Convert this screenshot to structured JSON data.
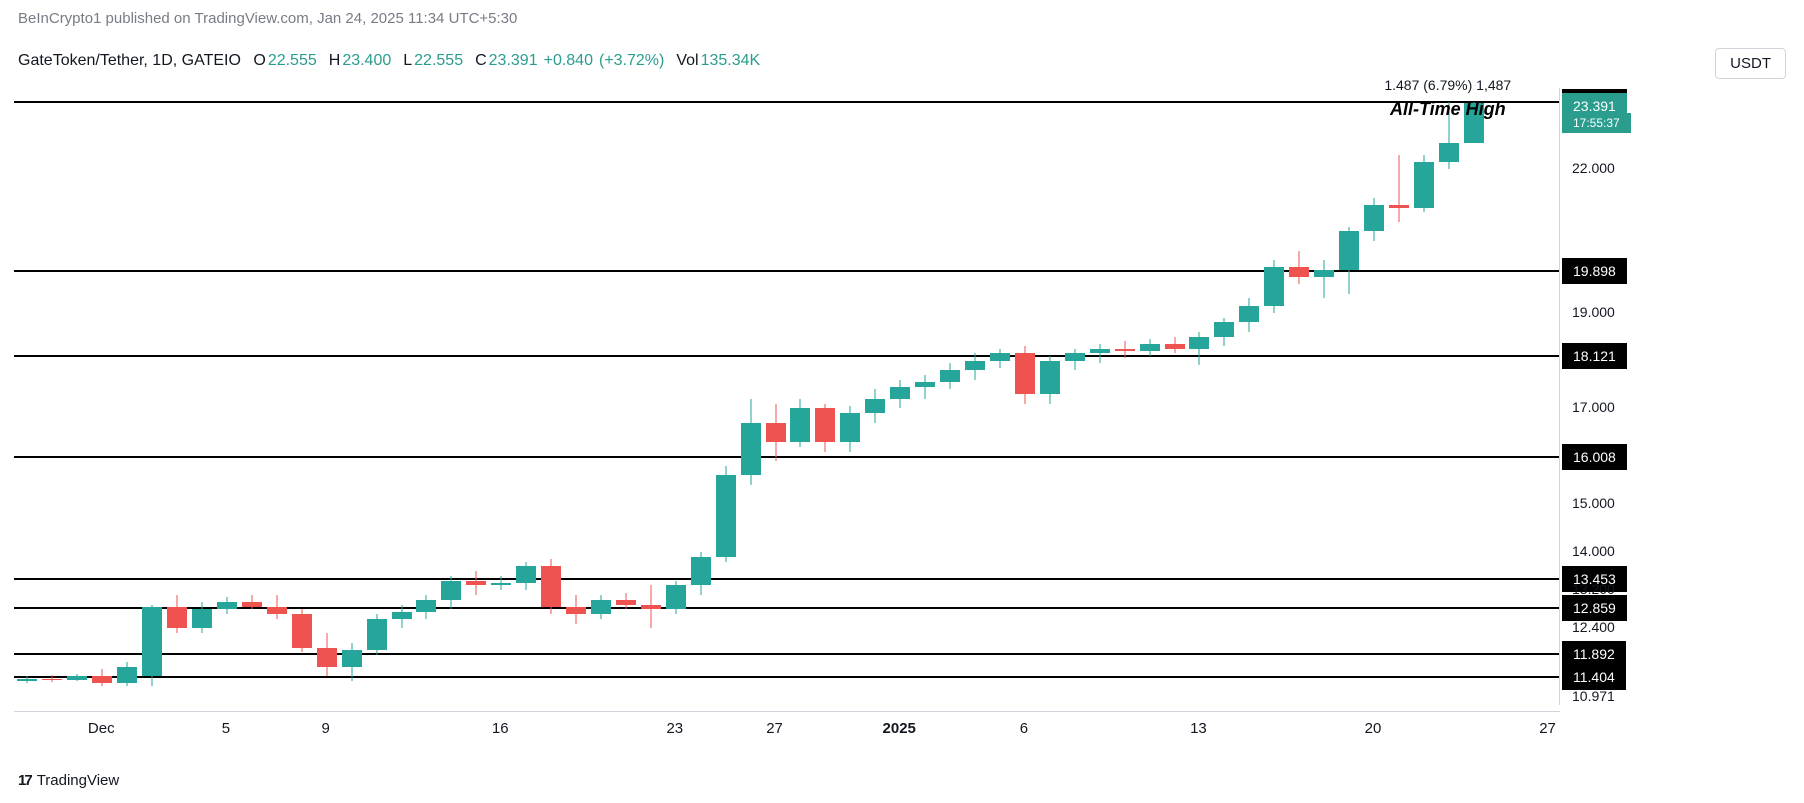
{
  "meta": {
    "publisher": "BeInCrypto1 published on TradingView.com, Jan 24, 2025 11:34 UTC+5:30",
    "footer_brand": "TradingView",
    "unit": "USDT"
  },
  "legend": {
    "pair": "GateToken/Tether, 1D, GATEIO",
    "O": "22.555",
    "H": "23.400",
    "L": "22.555",
    "C": "23.391",
    "change": "+0.840",
    "change_pct": "(+3.72%)",
    "vol_label": "Vol",
    "vol": "135.34K",
    "ohlc_color": "#2a9d8f"
  },
  "ath": {
    "label": "All-Time High",
    "range_text": "1.487 (6.79%) 1,487",
    "high_tag": "23.438",
    "close_tag": "23.391",
    "countdown": "17:55:37"
  },
  "chart": {
    "type": "candlestick",
    "background_color": "#ffffff",
    "up_color": "#26a69a",
    "down_color": "#ef5350",
    "wick_up_color": "#26a69a",
    "wick_down_color": "#ef5350",
    "candle_body_width": 20,
    "y_min": 10.8,
    "y_max": 23.7,
    "y_ticks": [
      {
        "v": 22.0,
        "label": "22.000"
      },
      {
        "v": 19.0,
        "label": "19.000"
      },
      {
        "v": 17.0,
        "label": "17.000"
      },
      {
        "v": 15.0,
        "label": "15.000"
      },
      {
        "v": 14.0,
        "label": "14.000"
      },
      {
        "v": 13.2,
        "label": "13.200"
      },
      {
        "v": 12.4,
        "label": "12.400"
      },
      {
        "v": 10.971,
        "label": "10.971"
      }
    ],
    "h_lines": [
      {
        "v": 23.438,
        "label": "23.438",
        "ath": true
      },
      {
        "v": 19.898,
        "label": "19.898"
      },
      {
        "v": 18.121,
        "label": "18.121"
      },
      {
        "v": 16.008,
        "label": "16.008"
      },
      {
        "v": 13.453,
        "label": "13.453"
      },
      {
        "v": 12.859,
        "label": "12.859"
      },
      {
        "v": 11.892,
        "label": "11.892"
      },
      {
        "v": 11.404,
        "label": "11.404"
      }
    ],
    "x_ticks": [
      {
        "i": 3,
        "label": "Dec"
      },
      {
        "i": 8,
        "label": "5"
      },
      {
        "i": 12,
        "label": "9"
      },
      {
        "i": 19,
        "label": "16"
      },
      {
        "i": 26,
        "label": "23"
      },
      {
        "i": 30,
        "label": "27"
      },
      {
        "i": 35,
        "label": "2025",
        "bold": true
      },
      {
        "i": 40,
        "label": "6"
      },
      {
        "i": 47,
        "label": "13"
      },
      {
        "i": 54,
        "label": "20"
      },
      {
        "i": 61,
        "label": "27"
      }
    ],
    "n_slots": 62,
    "candles": [
      {
        "i": 0,
        "o": 11.3,
        "h": 11.4,
        "l": 11.25,
        "c": 11.35,
        "up": true
      },
      {
        "i": 1,
        "o": 11.35,
        "h": 11.42,
        "l": 11.28,
        "c": 11.32,
        "up": false
      },
      {
        "i": 2,
        "o": 11.32,
        "h": 11.45,
        "l": 11.3,
        "c": 11.4,
        "up": true
      },
      {
        "i": 3,
        "o": 11.4,
        "h": 11.55,
        "l": 11.2,
        "c": 11.25,
        "up": false
      },
      {
        "i": 4,
        "o": 11.25,
        "h": 11.7,
        "l": 11.2,
        "c": 11.6,
        "up": true
      },
      {
        "i": 5,
        "o": 11.4,
        "h": 12.9,
        "l": 11.2,
        "c": 12.85,
        "up": true
      },
      {
        "i": 6,
        "o": 12.85,
        "h": 13.1,
        "l": 12.3,
        "c": 12.4,
        "up": false
      },
      {
        "i": 7,
        "o": 12.4,
        "h": 12.95,
        "l": 12.3,
        "c": 12.8,
        "up": true
      },
      {
        "i": 8,
        "o": 12.8,
        "h": 13.05,
        "l": 12.7,
        "c": 12.95,
        "up": true
      },
      {
        "i": 9,
        "o": 12.95,
        "h": 13.1,
        "l": 12.8,
        "c": 12.85,
        "up": false
      },
      {
        "i": 10,
        "o": 12.85,
        "h": 13.1,
        "l": 12.6,
        "c": 12.7,
        "up": false
      },
      {
        "i": 11,
        "o": 12.7,
        "h": 12.8,
        "l": 11.9,
        "c": 12.0,
        "up": false
      },
      {
        "i": 12,
        "o": 12.0,
        "h": 12.3,
        "l": 11.4,
        "c": 11.6,
        "up": false
      },
      {
        "i": 13,
        "o": 11.6,
        "h": 12.1,
        "l": 11.3,
        "c": 11.95,
        "up": true
      },
      {
        "i": 14,
        "o": 11.95,
        "h": 12.7,
        "l": 11.85,
        "c": 12.6,
        "up": true
      },
      {
        "i": 15,
        "o": 12.6,
        "h": 12.9,
        "l": 12.4,
        "c": 12.75,
        "up": true
      },
      {
        "i": 16,
        "o": 12.75,
        "h": 13.1,
        "l": 12.6,
        "c": 13.0,
        "up": true
      },
      {
        "i": 17,
        "o": 13.0,
        "h": 13.5,
        "l": 12.8,
        "c": 13.4,
        "up": true
      },
      {
        "i": 18,
        "o": 13.4,
        "h": 13.6,
        "l": 13.1,
        "c": 13.3,
        "up": false
      },
      {
        "i": 19,
        "o": 13.3,
        "h": 13.5,
        "l": 13.2,
        "c": 13.35,
        "up": true
      },
      {
        "i": 20,
        "o": 13.35,
        "h": 13.8,
        "l": 13.2,
        "c": 13.7,
        "up": true
      },
      {
        "i": 21,
        "o": 13.7,
        "h": 13.85,
        "l": 12.7,
        "c": 12.85,
        "up": false
      },
      {
        "i": 22,
        "o": 12.85,
        "h": 13.1,
        "l": 12.5,
        "c": 12.7,
        "up": false
      },
      {
        "i": 23,
        "o": 12.7,
        "h": 13.1,
        "l": 12.6,
        "c": 13.0,
        "up": true
      },
      {
        "i": 24,
        "o": 13.0,
        "h": 13.15,
        "l": 12.8,
        "c": 12.9,
        "up": false
      },
      {
        "i": 25,
        "o": 12.9,
        "h": 13.3,
        "l": 12.4,
        "c": 12.8,
        "up": false
      },
      {
        "i": 26,
        "o": 12.8,
        "h": 13.4,
        "l": 12.7,
        "c": 13.3,
        "up": true
      },
      {
        "i": 27,
        "o": 13.3,
        "h": 14.0,
        "l": 13.1,
        "c": 13.9,
        "up": true
      },
      {
        "i": 28,
        "o": 13.9,
        "h": 15.8,
        "l": 13.8,
        "c": 15.6,
        "up": true
      },
      {
        "i": 29,
        "o": 15.6,
        "h": 17.2,
        "l": 15.4,
        "c": 16.7,
        "up": true
      },
      {
        "i": 30,
        "o": 16.7,
        "h": 17.1,
        "l": 15.9,
        "c": 16.3,
        "up": false
      },
      {
        "i": 31,
        "o": 16.3,
        "h": 17.2,
        "l": 16.2,
        "c": 17.0,
        "up": true
      },
      {
        "i": 32,
        "o": 17.0,
        "h": 17.1,
        "l": 16.1,
        "c": 16.3,
        "up": false
      },
      {
        "i": 33,
        "o": 16.3,
        "h": 17.05,
        "l": 16.1,
        "c": 16.9,
        "up": true
      },
      {
        "i": 34,
        "o": 16.9,
        "h": 17.4,
        "l": 16.7,
        "c": 17.2,
        "up": true
      },
      {
        "i": 35,
        "o": 17.2,
        "h": 17.6,
        "l": 17.0,
        "c": 17.45,
        "up": true
      },
      {
        "i": 36,
        "o": 17.45,
        "h": 17.7,
        "l": 17.2,
        "c": 17.55,
        "up": true
      },
      {
        "i": 37,
        "o": 17.55,
        "h": 17.95,
        "l": 17.4,
        "c": 17.8,
        "up": true
      },
      {
        "i": 38,
        "o": 17.8,
        "h": 18.15,
        "l": 17.6,
        "c": 18.0,
        "up": true
      },
      {
        "i": 39,
        "o": 18.0,
        "h": 18.25,
        "l": 17.85,
        "c": 18.15,
        "up": true
      },
      {
        "i": 40,
        "o": 18.15,
        "h": 18.3,
        "l": 17.1,
        "c": 17.3,
        "up": false
      },
      {
        "i": 41,
        "o": 17.3,
        "h": 18.1,
        "l": 17.1,
        "c": 18.0,
        "up": true
      },
      {
        "i": 42,
        "o": 18.0,
        "h": 18.25,
        "l": 17.8,
        "c": 18.15,
        "up": true
      },
      {
        "i": 43,
        "o": 18.15,
        "h": 18.35,
        "l": 17.95,
        "c": 18.25,
        "up": true
      },
      {
        "i": 44,
        "o": 18.25,
        "h": 18.4,
        "l": 18.05,
        "c": 18.2,
        "up": false
      },
      {
        "i": 45,
        "o": 18.2,
        "h": 18.45,
        "l": 18.1,
        "c": 18.35,
        "up": true
      },
      {
        "i": 46,
        "o": 18.35,
        "h": 18.5,
        "l": 18.15,
        "c": 18.25,
        "up": false
      },
      {
        "i": 47,
        "o": 18.25,
        "h": 18.6,
        "l": 17.9,
        "c": 18.5,
        "up": true
      },
      {
        "i": 48,
        "o": 18.5,
        "h": 18.9,
        "l": 18.3,
        "c": 18.8,
        "up": true
      },
      {
        "i": 49,
        "o": 18.8,
        "h": 19.3,
        "l": 18.6,
        "c": 19.15,
        "up": true
      },
      {
        "i": 50,
        "o": 19.15,
        "h": 20.1,
        "l": 19.0,
        "c": 19.95,
        "up": true
      },
      {
        "i": 51,
        "o": 19.95,
        "h": 20.3,
        "l": 19.6,
        "c": 19.75,
        "up": false
      },
      {
        "i": 52,
        "o": 19.75,
        "h": 20.1,
        "l": 19.3,
        "c": 19.9,
        "up": true
      },
      {
        "i": 53,
        "o": 19.9,
        "h": 20.8,
        "l": 19.4,
        "c": 20.7,
        "up": true
      },
      {
        "i": 54,
        "o": 20.7,
        "h": 21.4,
        "l": 20.5,
        "c": 21.25,
        "up": true
      },
      {
        "i": 55,
        "o": 21.25,
        "h": 22.3,
        "l": 20.9,
        "c": 21.2,
        "up": false
      },
      {
        "i": 56,
        "o": 21.2,
        "h": 22.3,
        "l": 21.1,
        "c": 22.15,
        "up": true
      },
      {
        "i": 57,
        "o": 22.15,
        "h": 23.4,
        "l": 22.0,
        "c": 22.55,
        "up": true
      },
      {
        "i": 58,
        "o": 22.55,
        "h": 23.4,
        "l": 22.55,
        "c": 23.39,
        "up": true
      }
    ]
  }
}
